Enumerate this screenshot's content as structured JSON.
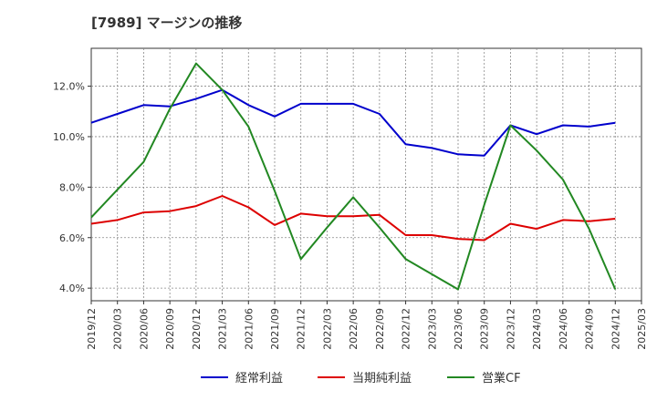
{
  "chart_data": {
    "type": "line",
    "title": "[7989]  マージンの推移",
    "x": [
      "2019/12",
      "2020/03",
      "2020/06",
      "2020/09",
      "2020/12",
      "2021/03",
      "2021/06",
      "2021/09",
      "2021/12",
      "2022/03",
      "2022/06",
      "2022/09",
      "2022/12",
      "2023/03",
      "2023/06",
      "2023/09",
      "2023/12",
      "2024/03",
      "2024/06",
      "2024/09",
      "2024/12",
      "2025/03"
    ],
    "ylim": [
      3.5,
      13.5
    ],
    "yticks": [
      4.0,
      6.0,
      8.0,
      10.0,
      12.0
    ],
    "ytick_labels": [
      "4.0%",
      "6.0%",
      "8.0%",
      "10.0%",
      "12.0%"
    ],
    "grid": true,
    "legend_position": "bottom",
    "series": [
      {
        "name": "経常利益",
        "color": "#0000cc",
        "values": [
          10.55,
          10.9,
          11.25,
          11.2,
          11.5,
          11.85,
          11.25,
          10.8,
          11.3,
          11.3,
          11.3,
          10.9,
          9.7,
          9.55,
          9.3,
          9.25,
          10.45,
          10.1,
          10.45,
          10.4,
          10.55,
          null
        ]
      },
      {
        "name": "当期純利益",
        "color": "#dd0000",
        "values": [
          6.55,
          6.7,
          7.0,
          7.05,
          7.25,
          7.65,
          7.2,
          6.5,
          6.95,
          6.85,
          6.85,
          6.9,
          6.1,
          6.1,
          5.95,
          5.9,
          6.55,
          6.35,
          6.7,
          6.65,
          6.75,
          null
        ]
      },
      {
        "name": "営業CF",
        "color": "#228822",
        "values": [
          6.8,
          7.9,
          9.0,
          11.1,
          12.9,
          11.85,
          10.4,
          7.85,
          5.15,
          6.4,
          7.6,
          6.4,
          5.15,
          4.55,
          3.95,
          7.3,
          10.45,
          9.45,
          8.3,
          6.35,
          3.95,
          null
        ]
      }
    ]
  }
}
